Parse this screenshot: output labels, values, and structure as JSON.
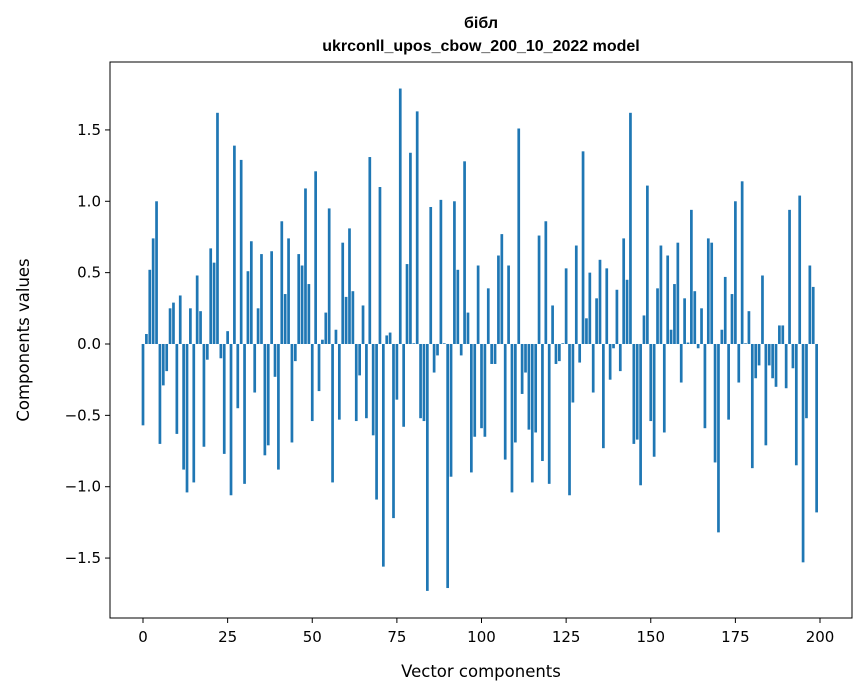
{
  "chart_data": {
    "type": "bar",
    "title": "бібл",
    "subtitle": "ukrconll_upos_cbow_200_10_2022 model",
    "xlabel": "Vector components",
    "ylabel": "Components values",
    "xlim": [
      -9.75,
      209.45
    ],
    "ylim": [
      -1.92,
      1.976
    ],
    "xticks": [
      0,
      25,
      50,
      75,
      100,
      125,
      150,
      175,
      200
    ],
    "xtick_labels": [
      "0",
      "25",
      "50",
      "75",
      "100",
      "125",
      "150",
      "175",
      "200"
    ],
    "yticks": [
      -1.5,
      -1.0,
      -0.5,
      0.0,
      0.5,
      1.0,
      1.5
    ],
    "ytick_labels": [
      "−1.5",
      "−1.0",
      "−0.5",
      "0.0",
      "0.5",
      "1.0",
      "1.5"
    ],
    "grid": false,
    "bar_color": "#1f77b4",
    "values": [
      -0.57,
      0.07,
      0.52,
      0.74,
      1.0,
      -0.7,
      -0.29,
      -0.19,
      0.25,
      0.29,
      -0.63,
      0.34,
      -0.88,
      -1.04,
      0.25,
      -0.97,
      0.48,
      0.23,
      -0.72,
      -0.11,
      0.67,
      0.57,
      1.62,
      -0.1,
      -0.77,
      0.09,
      -1.06,
      1.39,
      -0.45,
      1.29,
      -0.98,
      0.51,
      0.72,
      -0.34,
      0.25,
      0.63,
      -0.78,
      -0.71,
      0.65,
      -0.23,
      -0.88,
      0.86,
      0.35,
      0.74,
      -0.69,
      -0.12,
      0.63,
      0.55,
      1.09,
      0.42,
      -0.54,
      1.21,
      -0.33,
      0.03,
      0.22,
      0.95,
      -0.97,
      0.1,
      -0.53,
      0.71,
      0.33,
      0.81,
      0.37,
      -0.54,
      -0.22,
      0.27,
      -0.52,
      1.31,
      -0.64,
      -1.09,
      1.1,
      -1.56,
      0.06,
      0.08,
      -1.22,
      -0.39,
      1.79,
      -0.58,
      0.56,
      1.34,
      0.005,
      1.63,
      -0.52,
      -0.54,
      -1.73,
      0.96,
      -0.2,
      -0.08,
      1.01,
      0.005,
      -1.71,
      -0.93,
      1.0,
      0.52,
      -0.08,
      1.28,
      0.22,
      -0.9,
      -0.65,
      0.55,
      -0.59,
      -0.65,
      0.39,
      -0.14,
      -0.14,
      0.62,
      0.77,
      -0.81,
      0.55,
      -1.04,
      -0.69,
      1.51,
      -0.35,
      -0.2,
      -0.6,
      -0.97,
      -0.62,
      0.76,
      -0.82,
      0.86,
      -0.98,
      0.27,
      -0.14,
      -0.12,
      0.005,
      0.53,
      -1.06,
      -0.41,
      0.69,
      -0.13,
      1.35,
      0.18,
      0.5,
      -0.34,
      0.32,
      0.59,
      -0.73,
      0.53,
      -0.25,
      -0.03,
      0.38,
      -0.19,
      0.74,
      0.45,
      1.62,
      -0.7,
      -0.67,
      -0.99,
      0.2,
      1.11,
      -0.54,
      -0.79,
      0.39,
      0.69,
      -0.62,
      0.62,
      0.1,
      0.42,
      0.71,
      -0.27,
      0.32,
      0.01,
      0.94,
      0.37,
      -0.03,
      0.25,
      -0.59,
      0.74,
      0.71,
      -0.83,
      -1.32,
      0.1,
      0.47,
      -0.53,
      0.35,
      1.0,
      -0.27,
      1.14,
      0.005,
      0.23,
      -0.87,
      -0.24,
      -0.15,
      0.48,
      -0.71,
      -0.15,
      -0.24,
      -0.3,
      0.13,
      0.13,
      -0.31,
      0.94,
      -0.17,
      -0.85,
      1.04,
      -1.53,
      -0.52,
      0.55,
      0.4,
      -1.18
    ]
  }
}
